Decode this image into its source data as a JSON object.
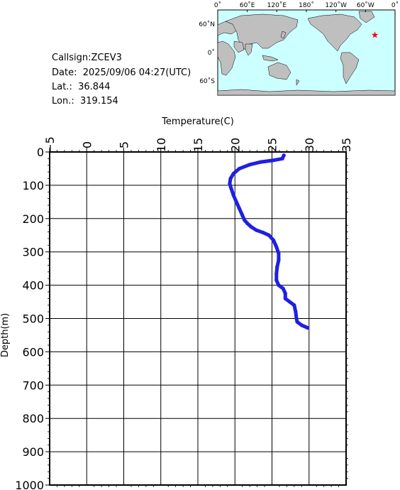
{
  "info": {
    "callsign": "Callsign:ZCEV3",
    "date_label": "Date:",
    "date_value": "2025/09/06 04:27(UTC)",
    "lat_label": "Lat.:",
    "lat_value": "36.844",
    "lon_label": "Lon.:",
    "lon_value": "319.154"
  },
  "map": {
    "top_labels": [
      "0˚",
      "60˚E",
      "120˚E",
      "180˚",
      "120˚W",
      "60˚W",
      "0˚"
    ],
    "left_labels": [
      "60˚N",
      "0˚",
      "60˚S"
    ],
    "ocean_color": "#ccffff",
    "land_color": "#bfbfbf",
    "marker_color": "#ff0000",
    "marker_lat": 36.844,
    "marker_lon": 319.154
  },
  "chart_data": {
    "type": "line",
    "title": "",
    "xlabel": "Temperature(C)",
    "ylabel": "Depth(m)",
    "xlim": [
      -5,
      35
    ],
    "ylim": [
      0,
      1000
    ],
    "y_inverted": true,
    "x_ticks": [
      -5,
      0,
      5,
      10,
      15,
      20,
      25,
      30,
      35
    ],
    "y_ticks": [
      0,
      100,
      200,
      300,
      400,
      500,
      600,
      700,
      800,
      900,
      1000
    ],
    "grid": true,
    "line_color": "#2020e0",
    "series": [
      {
        "name": "",
        "points": [
          [
            26.6,
            10
          ],
          [
            26.4,
            20
          ],
          [
            25.2,
            25
          ],
          [
            23.5,
            30
          ],
          [
            22.0,
            38
          ],
          [
            20.6,
            50
          ],
          [
            19.8,
            65
          ],
          [
            19.4,
            80
          ],
          [
            19.3,
            95
          ],
          [
            19.5,
            110
          ],
          [
            19.8,
            130
          ],
          [
            20.2,
            150
          ],
          [
            20.6,
            170
          ],
          [
            21.0,
            190
          ],
          [
            21.3,
            205
          ],
          [
            21.7,
            215
          ],
          [
            22.2,
            225
          ],
          [
            22.9,
            235
          ],
          [
            23.8,
            242
          ],
          [
            24.6,
            250
          ],
          [
            25.2,
            265
          ],
          [
            25.6,
            285
          ],
          [
            25.9,
            305
          ],
          [
            25.9,
            325
          ],
          [
            25.7,
            345
          ],
          [
            25.6,
            365
          ],
          [
            25.6,
            385
          ],
          [
            25.9,
            400
          ],
          [
            26.5,
            410
          ],
          [
            26.8,
            425
          ],
          [
            26.8,
            440
          ],
          [
            27.4,
            450
          ],
          [
            28.0,
            460
          ],
          [
            28.2,
            480
          ],
          [
            28.3,
            500
          ],
          [
            28.4,
            510
          ],
          [
            29.0,
            520
          ],
          [
            29.8,
            528
          ]
        ]
      }
    ]
  }
}
